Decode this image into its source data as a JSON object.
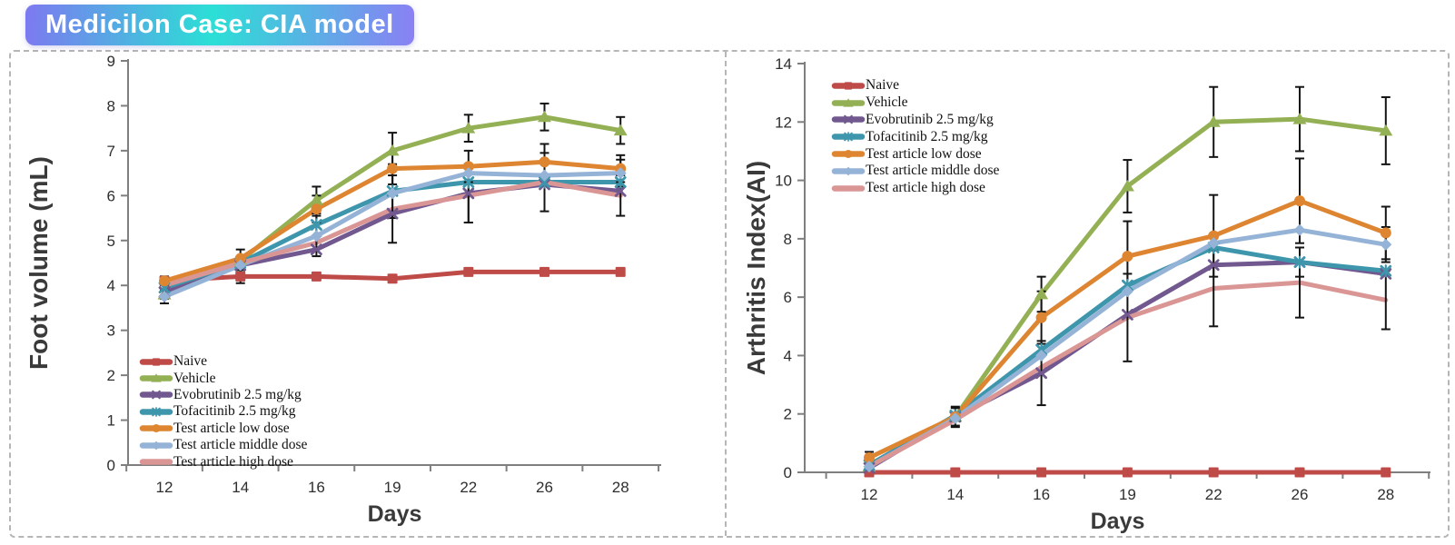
{
  "title": {
    "text": "Medicilon Case: CIA model"
  },
  "banner_colors": [
    "#7d79f0",
    "#2bdfd6",
    "#8a80f4"
  ],
  "chart_data": [
    {
      "type": "line",
      "title": "",
      "xlabel": "Days",
      "ylabel": "Foot volume (mL)",
      "ylim": [
        0,
        9
      ],
      "ytick_step": 1,
      "categories": [
        "12",
        "14",
        "16",
        "19",
        "22",
        "26",
        "28"
      ],
      "grid": false,
      "legend_position": "inside bottom-left",
      "series": [
        {
          "name": "Naive",
          "color": "#be4b48",
          "marker": "square",
          "values": [
            4.1,
            4.2,
            4.2,
            4.15,
            4.3,
            4.3,
            4.3
          ],
          "err": [
            0,
            0.15,
            0,
            0,
            0,
            0,
            0
          ]
        },
        {
          "name": "Vehicle",
          "color": "#94b054",
          "marker": "triangle",
          "values": [
            3.8,
            4.55,
            5.9,
            7.0,
            7.5,
            7.75,
            7.45
          ],
          "err": [
            0.1,
            0.25,
            0.3,
            0.4,
            0.3,
            0.3,
            0.3
          ]
        },
        {
          "name": "Evobrutinib 2.5 mg/kg",
          "color": "#71588f",
          "marker": "x",
          "values": [
            3.85,
            4.45,
            4.8,
            5.6,
            6.05,
            6.25,
            6.1
          ],
          "err": [
            0,
            0,
            0,
            0,
            0.65,
            0,
            0
          ]
        },
        {
          "name": "Tofacitinib 2.5 mg/kg",
          "color": "#3d96ac",
          "marker": "star",
          "values": [
            3.95,
            4.5,
            5.35,
            6.1,
            6.3,
            6.3,
            6.3
          ],
          "err": [
            0,
            0,
            0,
            0.6,
            0,
            0,
            0
          ]
        },
        {
          "name": "Test article low dose",
          "color": "#de8532",
          "marker": "circle",
          "values": [
            4.1,
            4.6,
            5.7,
            6.6,
            6.65,
            6.75,
            6.6
          ],
          "err": [
            0.1,
            0,
            0.3,
            0.35,
            0.35,
            0.4,
            0.3
          ]
        },
        {
          "name": "Test article middle dose",
          "color": "#95b3d7",
          "marker": "diamond",
          "values": [
            3.75,
            4.45,
            5.1,
            6.05,
            6.5,
            6.45,
            6.5
          ],
          "err": [
            0.15,
            0,
            0.45,
            0,
            0,
            0,
            0.3
          ]
        },
        {
          "name": "Test article high dose",
          "color": "#d99694",
          "marker": "none",
          "values": [
            4.0,
            4.5,
            4.95,
            5.7,
            6.0,
            6.3,
            6.0
          ],
          "err": [
            0,
            0,
            0,
            0.75,
            0.6,
            0.65,
            0.45
          ]
        }
      ]
    },
    {
      "type": "line",
      "title": "",
      "xlabel": "Days",
      "ylabel": "Arthritis Index(AI)",
      "ylim": [
        0,
        14
      ],
      "ytick_step": 2,
      "categories": [
        "12",
        "14",
        "16",
        "19",
        "22",
        "26",
        "28"
      ],
      "grid": false,
      "legend_position": "inside top-left",
      "series": [
        {
          "name": "Naive",
          "color": "#be4b48",
          "marker": "square",
          "values": [
            0,
            0,
            0,
            0,
            0,
            0,
            0
          ],
          "err": [
            0.1,
            0,
            0,
            0,
            0,
            0,
            0
          ]
        },
        {
          "name": "Vehicle",
          "color": "#94b054",
          "marker": "triangle",
          "values": [
            0.2,
            1.9,
            6.1,
            9.8,
            12.0,
            12.1,
            11.7
          ],
          "err": [
            0,
            0.35,
            0.6,
            0.9,
            1.2,
            1.1,
            1.15
          ]
        },
        {
          "name": "Evobrutinib 2.5 mg/kg",
          "color": "#71588f",
          "marker": "x",
          "values": [
            0.15,
            1.9,
            3.4,
            5.4,
            7.1,
            7.2,
            6.8
          ],
          "err": [
            0,
            0,
            1.1,
            0,
            0,
            0,
            0
          ]
        },
        {
          "name": "Tofacitinib 2.5 mg/kg",
          "color": "#3d96ac",
          "marker": "star",
          "values": [
            0.25,
            1.95,
            4.2,
            6.4,
            7.7,
            7.2,
            6.9
          ],
          "err": [
            0,
            0,
            0,
            0,
            0,
            0.5,
            0
          ]
        },
        {
          "name": "Test article low dose",
          "color": "#de8532",
          "marker": "circle",
          "values": [
            0.5,
            1.9,
            5.3,
            7.4,
            8.1,
            9.3,
            8.2
          ],
          "err": [
            0.2,
            0.3,
            0.9,
            1.2,
            1.4,
            1.45,
            0.9
          ]
        },
        {
          "name": "Test article middle dose",
          "color": "#95b3d7",
          "marker": "diamond",
          "values": [
            0.2,
            1.85,
            4.0,
            6.2,
            7.85,
            8.3,
            7.8
          ],
          "err": [
            0,
            0,
            0,
            0,
            0,
            0,
            0.6
          ]
        },
        {
          "name": "Test article high dose",
          "color": "#d99694",
          "marker": "none",
          "values": [
            0.2,
            1.8,
            3.6,
            5.3,
            6.3,
            6.5,
            5.9
          ],
          "err": [
            0,
            0,
            0,
            1.5,
            1.3,
            1.2,
            1.0
          ]
        }
      ]
    }
  ]
}
